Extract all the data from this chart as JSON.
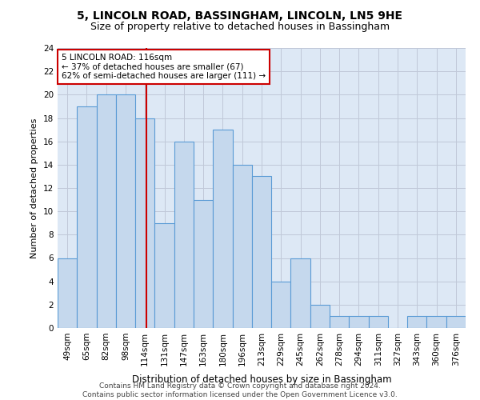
{
  "title1": "5, LINCOLN ROAD, BASSINGHAM, LINCOLN, LN5 9HE",
  "title2": "Size of property relative to detached houses in Bassingham",
  "xlabel": "Distribution of detached houses by size in Bassingham",
  "ylabel": "Number of detached properties",
  "categories": [
    "49sqm",
    "65sqm",
    "82sqm",
    "98sqm",
    "114sqm",
    "131sqm",
    "147sqm",
    "163sqm",
    "180sqm",
    "196sqm",
    "213sqm",
    "229sqm",
    "245sqm",
    "262sqm",
    "278sqm",
    "294sqm",
    "311sqm",
    "327sqm",
    "343sqm",
    "360sqm",
    "376sqm"
  ],
  "values": [
    6,
    19,
    20,
    20,
    18,
    9,
    16,
    11,
    17,
    14,
    13,
    4,
    6,
    2,
    1,
    1,
    1,
    0,
    1,
    1,
    1
  ],
  "bar_color": "#c5d8ed",
  "bar_edge_color": "#5a9bd5",
  "bar_edge_width": 0.8,
  "grid_color": "#c0c8d8",
  "background_color": "#dde8f5",
  "annotation_box_text": "5 LINCOLN ROAD: 116sqm\n← 37% of detached houses are smaller (67)\n62% of semi-detached houses are larger (111) →",
  "annotation_box_color": "#ffffff",
  "annotation_box_edge_color": "#cc0000",
  "vline_x_index": 4.06,
  "vline_color": "#cc0000",
  "ylim": [
    0,
    24
  ],
  "yticks": [
    0,
    2,
    4,
    6,
    8,
    10,
    12,
    14,
    16,
    18,
    20,
    22,
    24
  ],
  "footer1": "Contains HM Land Registry data © Crown copyright and database right 2024.",
  "footer2": "Contains public sector information licensed under the Open Government Licence v3.0.",
  "title1_fontsize": 10,
  "title2_fontsize": 9,
  "xlabel_fontsize": 8.5,
  "ylabel_fontsize": 8,
  "tick_fontsize": 7.5,
  "annotation_fontsize": 7.5,
  "footer_fontsize": 6.5
}
